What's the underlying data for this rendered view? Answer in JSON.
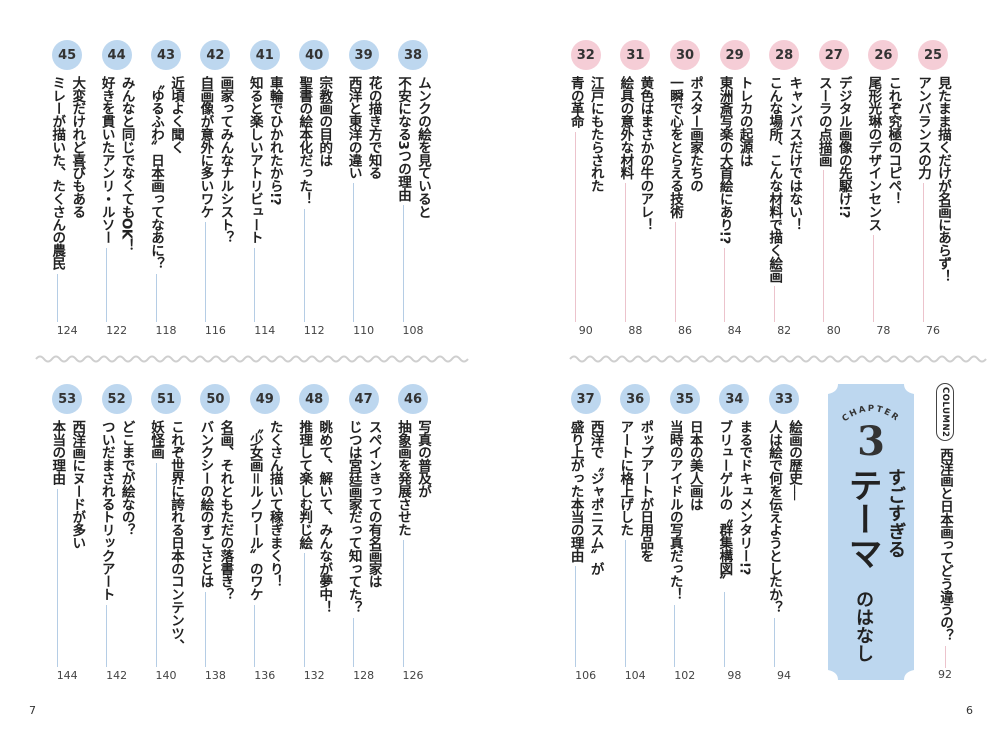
{
  "colors": {
    "blue": "#bdd7ef",
    "pink": "#f5cdd6",
    "blue_rule": "#b5cde5",
    "pink_rule": "#ecc3cc"
  },
  "folios": {
    "left": "7",
    "right": "6"
  },
  "chapter": {
    "label": "CHAPTER",
    "number": "3",
    "line1": "すごすぎる",
    "line2": "テーマ",
    "line3": "のはなし"
  },
  "column": {
    "label": "COLUMN2",
    "title": "西洋画と日本画ってどう違うの？",
    "page": "92"
  },
  "groups": [
    {
      "name": "top-right",
      "color": "pink",
      "entries": [
        {
          "num": "25",
          "lines": [
            "見たまま描くだけが名画にあらず！",
            "アンバランスの力"
          ],
          "page": "76"
        },
        {
          "num": "26",
          "lines": [
            "これぞ究極のコピペ！",
            "尾形光琳のデザインセンス"
          ],
          "page": "78"
        },
        {
          "num": "27",
          "lines": [
            "デジタル画像の先駆け!?",
            "スーラの点描画"
          ],
          "page": "80"
        },
        {
          "num": "28",
          "lines": [
            "キャンバスだけではない！",
            "こんな場所、こんな材料で描く絵画"
          ],
          "page": "82"
        },
        {
          "num": "29",
          "lines": [
            "トレカの起源は",
            "東洲斎写楽の大首絵にあり!?"
          ],
          "page": "84"
        },
        {
          "num": "30",
          "lines": [
            "ポスター画家たちの",
            "一瞬で心をとらえる技術"
          ],
          "page": "86"
        },
        {
          "num": "31",
          "lines": [
            "黄色はまさかの牛のアレ！",
            "絵具の意外な材料"
          ],
          "page": "88"
        },
        {
          "num": "32",
          "lines": [
            "江戸にもたらされた",
            "青の革命"
          ],
          "page": "90"
        }
      ]
    },
    {
      "name": "top-left",
      "color": "blue",
      "entries": [
        {
          "num": "38",
          "lines": [
            "ムンクの絵を見ていると",
            "不安になる3つの理由"
          ],
          "page": "108"
        },
        {
          "num": "39",
          "lines": [
            "花の描き方で知る",
            "西洋と東洋の違い"
          ],
          "page": "110"
        },
        {
          "num": "40",
          "lines": [
            "宗教画の目的は",
            "聖書の絵本化だった！"
          ],
          "page": "112"
        },
        {
          "num": "41",
          "lines": [
            "車輪でひかれたから!?",
            "知ると楽しいアトリビュート"
          ],
          "page": "114"
        },
        {
          "num": "42",
          "lines": [
            "画家ってみんなナルシスト？",
            "自画像が意外に多いワケ"
          ],
          "page": "116"
        },
        {
          "num": "43",
          "lines": [
            "近頃よく聞く",
            "〝ゆるふわ〟日本画ってなあに？"
          ],
          "page": "118"
        },
        {
          "num": "44",
          "lines": [
            "みんなと同じでなくてもOK！",
            "好きを貫いたアンリ・ルソー"
          ],
          "page": "122"
        },
        {
          "num": "45",
          "lines": [
            "大変だけれど喜びもある",
            "ミレーが描いた、たくさんの農民"
          ],
          "page": "124"
        }
      ]
    },
    {
      "name": "bottom-right",
      "color": "blue",
      "entries": [
        {
          "num": "33",
          "lines": [
            "絵画の歴史──",
            "人は絵で何を伝えようとしたか？"
          ],
          "page": "94"
        },
        {
          "num": "34",
          "lines": [
            "まるでドキュメンタリー!?",
            "ブリューゲルの〝群集構図〟"
          ],
          "page": "98"
        },
        {
          "num": "35",
          "lines": [
            "日本の美人画は",
            "当時のアイドルの写真だった！"
          ],
          "page": "102"
        },
        {
          "num": "36",
          "lines": [
            "ポップアートが日用品を",
            "アートに格上げした"
          ],
          "page": "104"
        },
        {
          "num": "37",
          "lines": [
            "西洋で〝ジャポニスム〟が",
            "盛り上がった本当の理由"
          ],
          "page": "106"
        }
      ]
    },
    {
      "name": "bottom-left",
      "color": "blue",
      "entries": [
        {
          "num": "46",
          "lines": [
            "写真の普及が",
            "抽象画を発展させた"
          ],
          "page": "126"
        },
        {
          "num": "47",
          "lines": [
            "スペインきっての有名画家は",
            "じつは宮廷画家だって知ってた？"
          ],
          "page": "128"
        },
        {
          "num": "48",
          "lines": [
            "眺めて、解いて、みんなが夢中！",
            "推理して楽しむ判じ絵"
          ],
          "page": "132"
        },
        {
          "num": "49",
          "lines": [
            "たくさん描いて稼ぎまくり！",
            "〝少女画＝ルノワール〟のワケ"
          ],
          "page": "136"
        },
        {
          "num": "50",
          "lines": [
            "名画、それともただの落書き？",
            "バンクシーの絵のすごさとは"
          ],
          "page": "138"
        },
        {
          "num": "51",
          "lines": [
            "これぞ世界に誇れる日本のコンテンツ、",
            "妖怪画"
          ],
          "page": "140"
        },
        {
          "num": "52",
          "lines": [
            "どこまでが絵なの？",
            "ついだまされるトリックアート"
          ],
          "page": "142"
        },
        {
          "num": "53",
          "lines": [
            "西洋画にヌードが多い",
            "本当の理由"
          ],
          "page": "144"
        }
      ]
    }
  ]
}
